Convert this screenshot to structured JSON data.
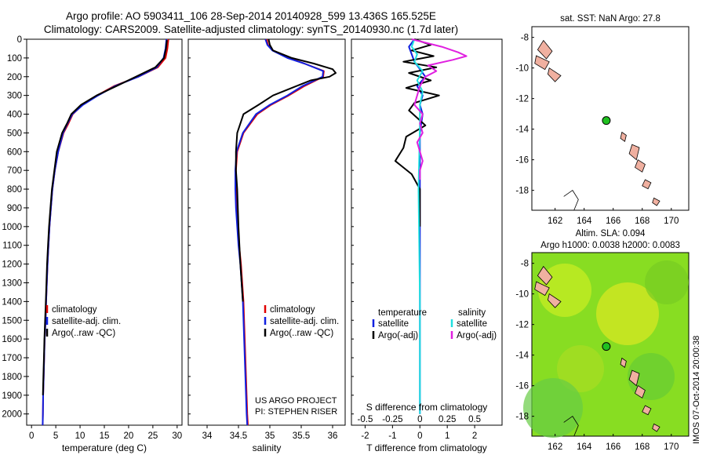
{
  "header": {
    "line1": "Argo profile: AO 5903411_106 28-Sep-2014 20140928_599 13.436S 165.525E",
    "line2": "Climatology: CARS2009. Satellite-adjusted climatology: synTS_20140930.nc (1.7d later)"
  },
  "side_label": "IMOS 07-Oct-2014 20:00:38",
  "colors": {
    "climatology": "#e00000",
    "satellite": "#1020e0",
    "argo": "#000000",
    "salinity_satellite": "#20e0e0",
    "argo_salinity_diff": "#e020e0",
    "land": "#f0b0a0",
    "float": "#20c020"
  },
  "chart_data": [
    {
      "type": "line",
      "panel": "temperature",
      "xlabel": "temperature (deg C)",
      "xlim": [
        -1,
        31
      ],
      "xticks": [
        0,
        5,
        10,
        15,
        20,
        25,
        30
      ],
      "ylim": [
        2060,
        0
      ],
      "yticks": [
        0,
        100,
        200,
        300,
        400,
        500,
        600,
        700,
        800,
        900,
        1000,
        1100,
        1200,
        1300,
        1400,
        1500,
        1600,
        1700,
        1800,
        1900,
        2000
      ],
      "legend": [
        "climatology",
        "satellite-adj. clim.",
        "Argo(..raw -QC)"
      ],
      "series": [
        {
          "name": "climatology",
          "x": [
            28.2,
            28.0,
            27.6,
            26.0,
            22.0,
            17.0,
            13.5,
            10.5,
            8.5,
            7.6,
            6.6,
            5.5,
            4.8,
            4.3,
            4.0,
            3.7,
            3.5,
            3.3,
            3.0,
            2.9,
            2.7,
            2.6,
            2.5,
            2.4,
            2.35,
            2.3
          ],
          "y": [
            0,
            50,
            100,
            150,
            200,
            250,
            300,
            350,
            400,
            450,
            500,
            600,
            700,
            800,
            900,
            1000,
            1100,
            1200,
            1400,
            1500,
            1600,
            1700,
            1800,
            1900,
            2000,
            2060
          ]
        },
        {
          "name": "satellite-adj. clim.",
          "x": [
            27.8,
            27.6,
            27.2,
            25.8,
            22.0,
            17.2,
            13.7,
            10.6,
            8.4,
            7.4,
            6.5,
            5.5,
            4.8,
            4.3,
            4.0,
            3.7,
            3.5,
            3.3,
            3.0,
            2.9,
            2.7,
            2.6,
            2.5,
            2.4,
            2.35,
            2.3
          ],
          "y": [
            0,
            50,
            100,
            150,
            200,
            250,
            300,
            350,
            400,
            450,
            500,
            600,
            700,
            800,
            900,
            1000,
            1100,
            1200,
            1400,
            1500,
            1600,
            1700,
            1800,
            1900,
            2000,
            2060
          ]
        },
        {
          "name": "Argo(..raw -QC)",
          "x": [
            27.9,
            27.7,
            27.3,
            25.5,
            21.5,
            17.5,
            13.4,
            10.2,
            8.2,
            7.3,
            6.3,
            5.2,
            4.7,
            4.2,
            3.9,
            3.6,
            3.4,
            3.2,
            2.95,
            2.8,
            2.65,
            2.55,
            2.45,
            2.35
          ],
          "y": [
            5,
            50,
            100,
            150,
            200,
            250,
            300,
            350,
            400,
            450,
            500,
            600,
            700,
            800,
            900,
            1000,
            1100,
            1200,
            1400,
            1500,
            1600,
            1700,
            1800,
            1900
          ]
        }
      ]
    },
    {
      "type": "line",
      "panel": "salinity",
      "xlabel": "salinity",
      "xlim": [
        33.7,
        36.2
      ],
      "xticks": [
        34,
        34.5,
        35,
        35.5,
        36
      ],
      "ylim": [
        2060,
        0
      ],
      "legend": [
        "climatology",
        "satellite-adj. clim.",
        "Argo(..raw -QC)"
      ],
      "annotation": [
        "US ARGO PROJECT",
        "PI: STEPHEN RISER"
      ],
      "series": [
        {
          "name": "climatology",
          "x": [
            34.95,
            34.97,
            35.05,
            35.3,
            35.55,
            35.86,
            35.85,
            35.55,
            35.3,
            35.02,
            34.8,
            34.58,
            34.48,
            34.46,
            34.46,
            34.47,
            34.49,
            34.51,
            34.54,
            34.58,
            34.6,
            34.62,
            34.63,
            34.64,
            34.65
          ],
          "y": [
            0,
            30,
            60,
            100,
            130,
            170,
            200,
            250,
            300,
            350,
            400,
            500,
            600,
            700,
            800,
            900,
            1000,
            1100,
            1200,
            1400,
            1600,
            1800,
            1900,
            2000,
            2060
          ]
        },
        {
          "name": "satellite-adj. clim.",
          "x": [
            34.93,
            34.96,
            35.04,
            35.28,
            35.55,
            35.85,
            35.84,
            35.52,
            35.28,
            35.0,
            34.78,
            34.57,
            34.47,
            34.45,
            34.45,
            34.46,
            34.48,
            34.5,
            34.53,
            34.57,
            34.59,
            34.61,
            34.62,
            34.63,
            34.64
          ],
          "y": [
            0,
            30,
            60,
            100,
            130,
            170,
            200,
            250,
            300,
            350,
            400,
            500,
            600,
            700,
            800,
            900,
            1000,
            1100,
            1200,
            1400,
            1600,
            1800,
            1900,
            2000,
            2060
          ]
        },
        {
          "name": "Argo(..raw -QC)",
          "x": [
            34.98,
            35.0,
            35.05,
            35.35,
            35.7,
            36.0,
            36.05,
            35.95,
            35.65,
            35.35,
            35.05,
            34.82,
            34.58,
            34.48,
            34.46,
            34.46,
            34.48,
            34.5,
            34.53,
            34.57
          ],
          "y": [
            0,
            30,
            60,
            100,
            130,
            160,
            180,
            200,
            220,
            260,
            300,
            350,
            400,
            500,
            600,
            700,
            800,
            1000,
            1200,
            1400
          ]
        }
      ]
    },
    {
      "type": "line",
      "panel": "difference",
      "xlabel": "T difference from climatology",
      "xlabel_top": "S difference from climatology",
      "xlim": [
        -2.5,
        3.0
      ],
      "xticks": [
        -2,
        -1,
        0,
        1,
        2
      ],
      "top_xtick_labels": [
        "-0.5",
        "-0.25",
        "0",
        "0.25",
        "0.5"
      ],
      "ylim": [
        2060,
        0
      ],
      "legend_headers": [
        "temperature",
        "salinity"
      ],
      "legend": [
        "satellite",
        "Argo(-adj)",
        "satellite",
        "Argo(-adj)"
      ],
      "series": [
        {
          "name": "temperature satellite",
          "x": [
            -0.2,
            -0.4,
            -0.3,
            -0.2,
            0.0,
            0.2,
            -0.1,
            0.1,
            0.0,
            0.1,
            0.0,
            0.0,
            0.0,
            0.0,
            0.0,
            0.0,
            0.0
          ],
          "y": [
            0,
            40,
            80,
            120,
            160,
            200,
            250,
            300,
            350,
            400,
            500,
            600,
            800,
            1000,
            1400,
            1800,
            2000
          ]
        },
        {
          "name": "temperature Argo(-adj)",
          "x": [
            -0.2,
            0.4,
            -0.3,
            0.5,
            -0.6,
            0.6,
            -0.4,
            0.4,
            -0.5,
            0.7,
            -0.2,
            -0.4,
            -0.1,
            0.2,
            -0.5,
            -0.6,
            -0.9,
            -0.3,
            0.0,
            0.0,
            0.0
          ],
          "y": [
            0,
            30,
            60,
            90,
            120,
            150,
            180,
            220,
            260,
            300,
            340,
            380,
            420,
            460,
            520,
            580,
            650,
            720,
            800,
            900,
            1000
          ]
        },
        {
          "name": "salinity satellite",
          "x": [
            -0.2,
            -0.3,
            -0.1,
            -0.2,
            0.1,
            -0.1,
            0.1,
            0.0,
            0.0,
            -0.05,
            0.0,
            0.0
          ],
          "y": [
            0,
            40,
            80,
            120,
            170,
            220,
            280,
            350,
            450,
            800,
            1400,
            2000
          ]
        },
        {
          "name": "salinity Argo(-adj)",
          "x": [
            -0.3,
            0.8,
            1.4,
            1.7,
            1.2,
            0.3,
            0.6,
            0.2,
            0.0,
            -0.1,
            -0.2,
            0.1,
            0.0,
            0.1,
            -0.1,
            0.0,
            0.1,
            0.0,
            0.0
          ],
          "y": [
            0,
            40,
            70,
            90,
            110,
            140,
            170,
            200,
            250,
            300,
            350,
            400,
            450,
            500,
            550,
            600,
            650,
            700,
            750
          ]
        }
      ]
    }
  ],
  "maps": [
    {
      "title": "sat. SST: NaN Argo: 27.8",
      "xticks": [
        162,
        164,
        166,
        168,
        170
      ],
      "yticks": [
        -8,
        -10,
        -12,
        -14,
        -16,
        -18
      ],
      "xlim": [
        160.4,
        171.2
      ],
      "ylim": [
        -19.3,
        -7.3
      ],
      "float_position": [
        165.525,
        -13.436
      ],
      "background": "#ffffff"
    },
    {
      "title": "Altim. SLA: 0.094",
      "subtitle": "Argo h1000: 0.0038 h2000: 0.0083",
      "xticks": [
        162,
        164,
        166,
        168,
        170
      ],
      "yticks": [
        -8,
        -10,
        -12,
        -14,
        -16,
        -18
      ],
      "xlim": [
        160.4,
        171.2
      ],
      "ylim": [
        -19.3,
        -7.3
      ],
      "float_position": [
        165.525,
        -13.436
      ],
      "background": "#88dd22"
    }
  ]
}
